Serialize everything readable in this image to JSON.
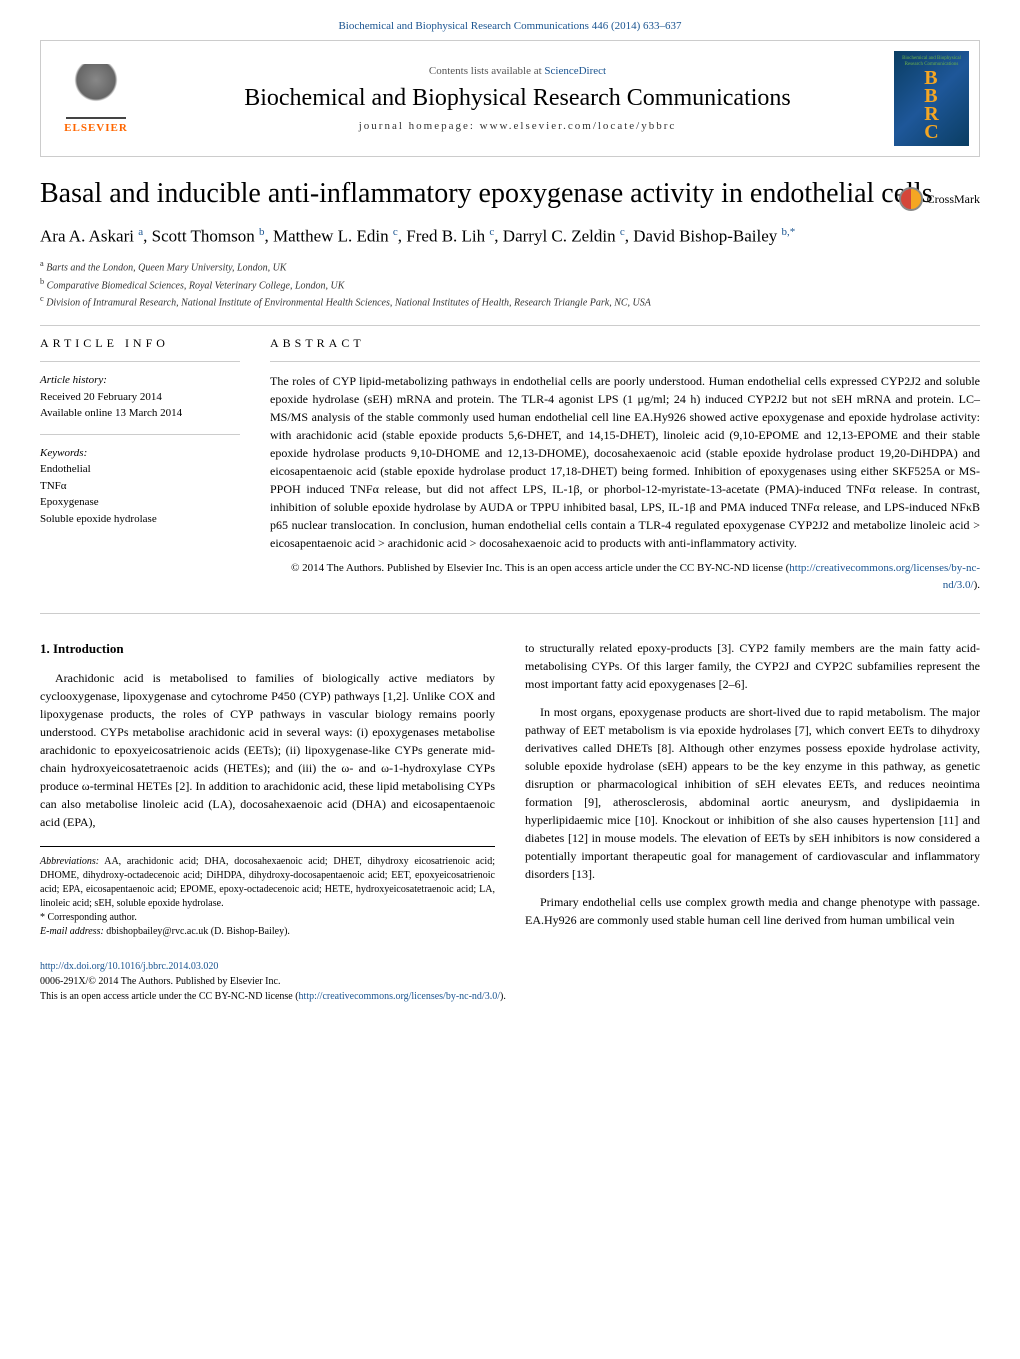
{
  "header": {
    "citation_link": "Biochemical and Biophysical Research Communications 446 (2014) 633–637",
    "sciencedirect_prefix": "Contents lists available at ",
    "sciencedirect_link": "ScienceDirect",
    "journal_name": "Biochemical and Biophysical Research Communications",
    "homepage_label": "journal homepage: ",
    "homepage_url": "www.elsevier.com/locate/ybbrc",
    "elsevier_label": "ELSEVIER",
    "cover_letters": "BBRC",
    "cover_subtitle": "Biochemical and Biophysical Research Communications"
  },
  "crossmark": {
    "label": "CrossMark"
  },
  "title": "Basal and inducible anti-inflammatory epoxygenase activity in endothelial cells",
  "authors_html": "Ara A. Askari <sup>a</sup>, Scott Thomson <sup>b</sup>, Matthew L. Edin <sup>c</sup>, Fred B. Lih <sup>c</sup>, Darryl C. Zeldin <sup>c</sup>, David Bishop-Bailey <sup>b,*</sup>",
  "affiliations": {
    "a": "Barts and the London, Queen Mary University, London, UK",
    "b": "Comparative Biomedical Sciences, Royal Veterinary College, London, UK",
    "c": "Division of Intramural Research, National Institute of Environmental Health Sciences, National Institutes of Health, Research Triangle Park, NC, USA"
  },
  "article_info": {
    "heading": "ARTICLE INFO",
    "history_label": "Article history:",
    "received": "Received 20 February 2014",
    "available": "Available online 13 March 2014",
    "keywords_label": "Keywords:",
    "keywords": [
      "Endothelial",
      "TNFα",
      "Epoxygenase",
      "Soluble epoxide hydrolase"
    ]
  },
  "abstract": {
    "heading": "ABSTRACT",
    "text": "The roles of CYP lipid-metabolizing pathways in endothelial cells are poorly understood. Human endothelial cells expressed CYP2J2 and soluble epoxide hydrolase (sEH) mRNA and protein. The TLR-4 agonist LPS (1 μg/ml; 24 h) induced CYP2J2 but not sEH mRNA and protein. LC–MS/MS analysis of the stable commonly used human endothelial cell line EA.Hy926 showed active epoxygenase and epoxide hydrolase activity: with arachidonic acid (stable epoxide products 5,6-DHET, and 14,15-DHET), linoleic acid (9,10-EPOME and 12,13-EPOME and their stable epoxide hydrolase products 9,10-DHOME and 12,13-DHOME), docosahexaenoic acid (stable epoxide hydrolase product 19,20-DiHDPA) and eicosapentaenoic acid (stable epoxide hydrolase product 17,18-DHET) being formed. Inhibition of epoxygenases using either SKF525A or MS-PPOH induced TNFα release, but did not affect LPS, IL-1β, or phorbol-12-myristate-13-acetate (PMA)-induced TNFα release. In contrast, inhibition of soluble epoxide hydrolase by AUDA or TPPU inhibited basal, LPS, IL-1β and PMA induced TNFα release, and LPS-induced NFκB p65 nuclear translocation. In conclusion, human endothelial cells contain a TLR-4 regulated epoxygenase CYP2J2 and metabolize linoleic acid > eicosapentaenoic acid > arachidonic acid > docosahexaenoic acid to products with anti-inflammatory activity.",
    "copyright": "© 2014 The Authors. Published by Elsevier Inc. This is an open access article under the CC BY-NC-ND license (",
    "license_url": "http://creativecommons.org/licenses/by-nc-nd/3.0/",
    "copyright_close": ")."
  },
  "intro": {
    "heading": "1. Introduction",
    "p1": "Arachidonic acid is metabolised to families of biologically active mediators by cyclooxygenase, lipoxygenase and cytochrome P450 (CYP) pathways [1,2]. Unlike COX and lipoxygenase products, the roles of CYP pathways in vascular biology remains poorly understood. CYPs metabolise arachidonic acid in several ways: (i) epoxygenases metabolise arachidonic to epoxyeicosatrienoic acids (EETs); (ii) lipoxygenase-like CYPs generate mid-chain hydroxyeicosatetraenoic acids (HETEs); and (iii) the ω- and ω-1-hydroxylase CYPs produce ω-terminal HETEs [2]. In addition to arachidonic acid, these lipid metabolising CYPs can also metabolise linoleic acid (LA), docosahexaenoic acid (DHA) and eicosapentaenoic acid (EPA),",
    "p2": "to structurally related epoxy-products [3]. CYP2 family members are the main fatty acid-metabolising CYPs. Of this larger family, the CYP2J and CYP2C subfamilies represent the most important fatty acid epoxygenases [2–6].",
    "p3": "In most organs, epoxygenase products are short-lived due to rapid metabolism. The major pathway of EET metabolism is via epoxide hydrolases [7], which convert EETs to dihydroxy derivatives called DHETs [8]. Although other enzymes possess epoxide hydrolase activity, soluble epoxide hydrolase (sEH) appears to be the key enzyme in this pathway, as genetic disruption or pharmacological inhibition of sEH elevates EETs, and reduces neointima formation [9], atherosclerosis, abdominal aortic aneurysm, and dyslipidaemia in hyperlipidaemic mice [10]. Knockout or inhibition of she also causes hypertension [11] and diabetes [12] in mouse models. The elevation of EETs by sEH inhibitors is now considered a potentially important therapeutic goal for management of cardiovascular and inflammatory disorders [13].",
    "p4": "Primary endothelial cells use complex growth media and change phenotype with passage. EA.Hy926 are commonly used stable human cell line derived from human umbilical vein"
  },
  "footnote": {
    "abbrev_label": "Abbreviations:",
    "abbrev_text": " AA, arachidonic acid; DHA, docosahexaenoic acid; DHET, dihydroxy eicosatrienoic acid; DHOME, dihydroxy-octadecenoic acid; DiHDPA, dihydroxy-docosapentaenoic acid; EET, epoxyeicosatrienoic acid; EPA, eicosapentaenoic acid; EPOME, epoxy-octadecenoic acid; HETE, hydroxyeicosatetraenoic acid; LA, linoleic acid; sEH, soluble epoxide hydrolase.",
    "corresponding": "* Corresponding author.",
    "email_label": "E-mail address: ",
    "email": "dbishopbailey@rvc.ac.uk",
    "email_suffix": " (D. Bishop-Bailey)."
  },
  "footer": {
    "doi": "http://dx.doi.org/10.1016/j.bbrc.2014.03.020",
    "issn_line": "0006-291X/© 2014 The Authors. Published by Elsevier Inc.",
    "license_line": "This is an open access article under the CC BY-NC-ND license (",
    "license_url": "http://creativecommons.org/licenses/by-nc-nd/3.0/",
    "license_close": ")."
  }
}
